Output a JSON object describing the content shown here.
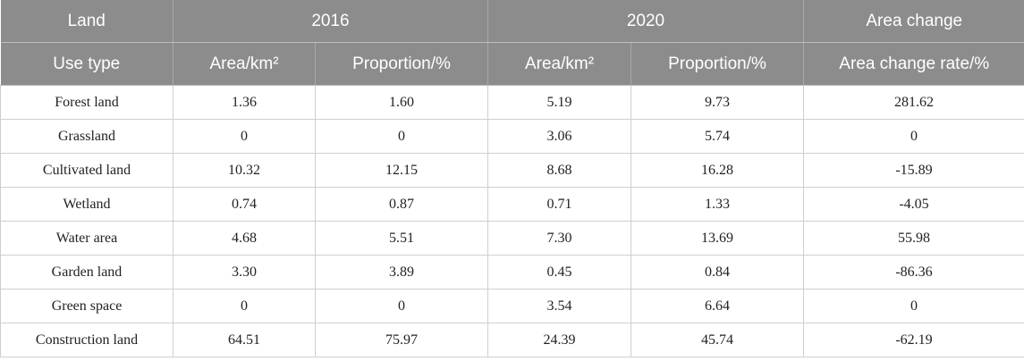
{
  "header": {
    "row1": [
      "Land",
      "2016",
      "2020",
      "Area change"
    ],
    "row2": [
      "Use type",
      "Area/km²",
      "Proportion/%",
      "Area/km²",
      "Proportion/%",
      "Area change rate/%"
    ]
  },
  "table": {
    "rows": [
      [
        "Forest land",
        "1.36",
        "1.60",
        "5.19",
        "9.73",
        "281.62"
      ],
      [
        "Grassland",
        "0",
        "0",
        "3.06",
        "5.74",
        "0"
      ],
      [
        "Cultivated land",
        "10.32",
        "12.15",
        "8.68",
        "16.28",
        "-15.89"
      ],
      [
        "Wetland",
        "0.74",
        "0.87",
        "0.71",
        "1.33",
        "-4.05"
      ],
      [
        "Water area",
        "4.68",
        "5.51",
        "7.30",
        "13.69",
        "55.98"
      ],
      [
        "Garden land",
        "3.30",
        "3.89",
        "0.45",
        "0.84",
        "-86.36"
      ],
      [
        "Green space",
        "0",
        "0",
        "3.54",
        "6.64",
        "0"
      ],
      [
        "Construction land",
        "64.51",
        "75.97",
        "24.39",
        "45.74",
        "-62.19"
      ]
    ]
  }
}
